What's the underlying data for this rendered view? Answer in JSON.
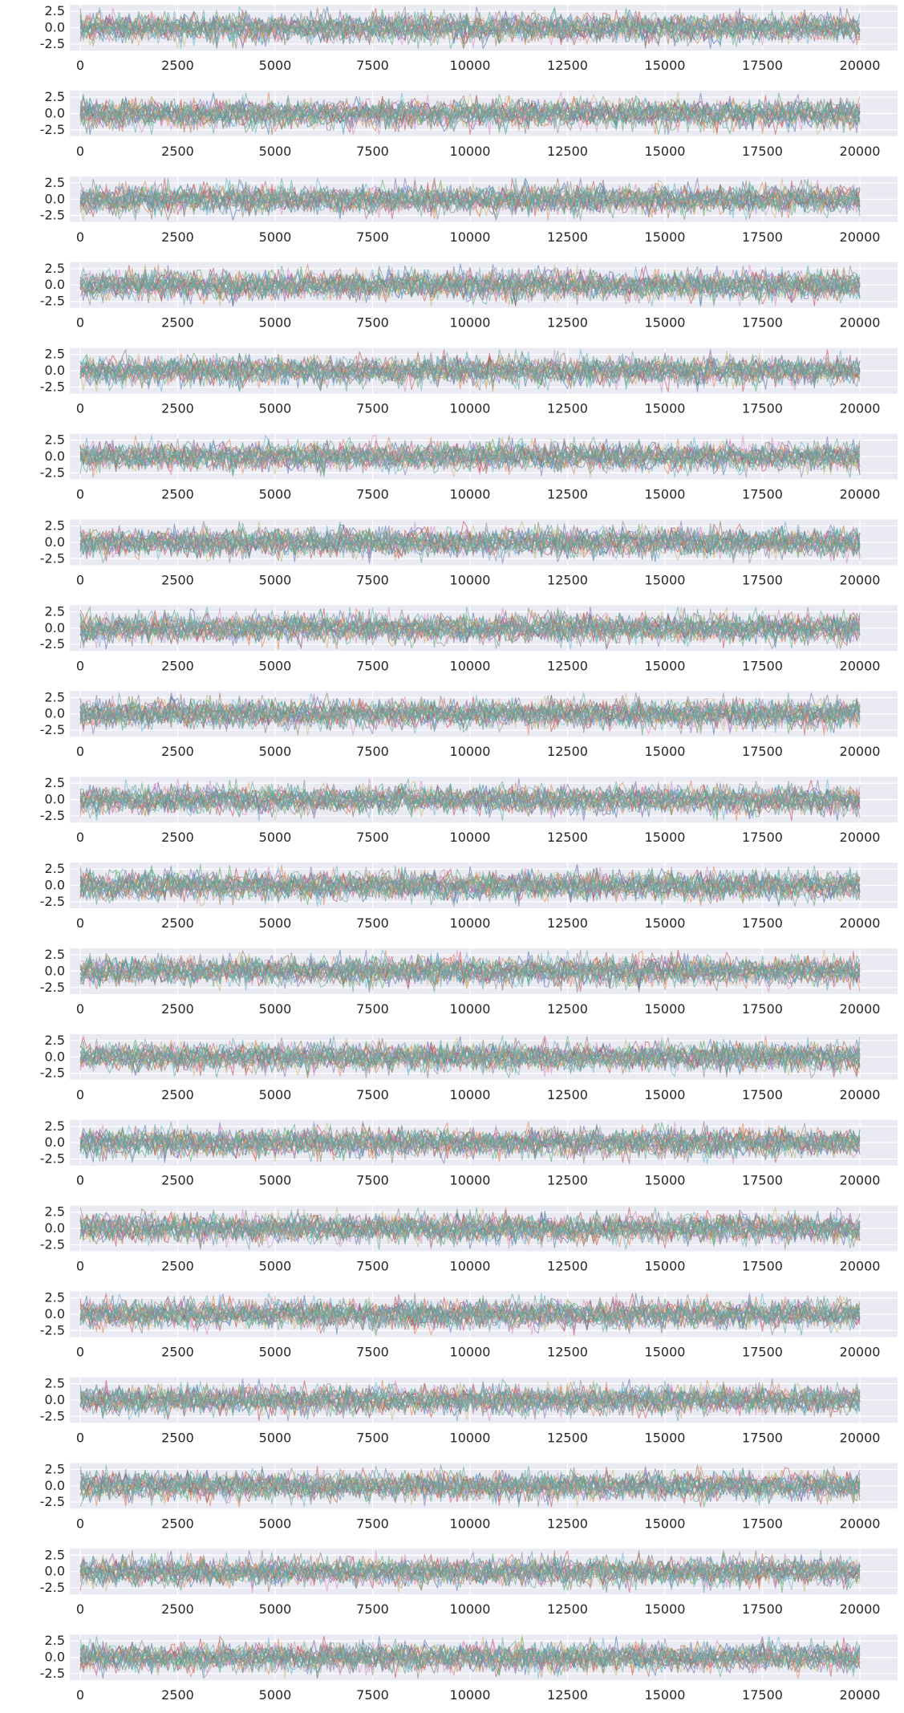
{
  "chart_data": {
    "type": "line",
    "panel_count": 20,
    "style": "seaborn darkgrid",
    "background_color": "#eaeaf2",
    "grid": true,
    "grid_color": "#ffffff",
    "xlim": [
      0,
      20000
    ],
    "ylim": [
      -3.5,
      3.5
    ],
    "x_ticks": [
      0,
      2500,
      5000,
      7500,
      10000,
      12500,
      15000,
      17500,
      20000
    ],
    "x_tick_labels": [
      "0",
      "2500",
      "5000",
      "7500",
      "10000",
      "12500",
      "15000",
      "17500",
      "20000"
    ],
    "y_ticks": [
      2.5,
      0.0,
      -2.5
    ],
    "y_tick_labels": [
      "2.5",
      "0.0",
      "-2.5"
    ],
    "line_colors": [
      "#4c72b0",
      "#dd8452",
      "#55a868",
      "#c44e52",
      "#8172b3",
      "#937860",
      "#da8bc3",
      "#8c8c8c",
      "#ccb974",
      "#64b5cd"
    ],
    "foreground_color": "#5fa89a",
    "line_alpha": 0.6,
    "series_description": "Dense overlapping noisy series per panel, roughly standard normal, oscillating between about -3 and 3 across x from 0 to 20000.",
    "panels": [
      {
        "index": 1
      },
      {
        "index": 2
      },
      {
        "index": 3
      },
      {
        "index": 4
      },
      {
        "index": 5
      },
      {
        "index": 6
      },
      {
        "index": 7
      },
      {
        "index": 8
      },
      {
        "index": 9
      },
      {
        "index": 10
      },
      {
        "index": 11
      },
      {
        "index": 12
      },
      {
        "index": 13
      },
      {
        "index": 14
      },
      {
        "index": 15
      },
      {
        "index": 16
      },
      {
        "index": 17
      },
      {
        "index": 18
      },
      {
        "index": 19
      },
      {
        "index": 20
      }
    ]
  }
}
